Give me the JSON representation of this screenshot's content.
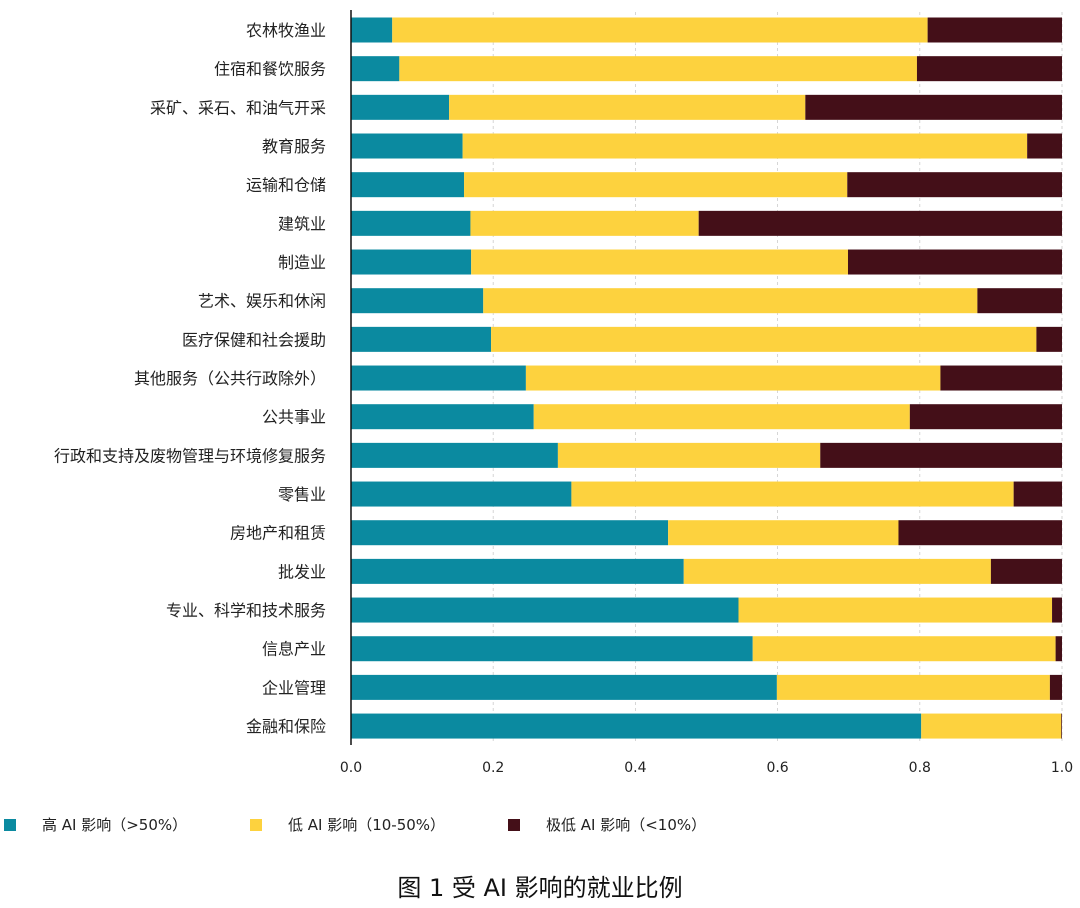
{
  "chart_data": {
    "type": "bar",
    "orientation": "horizontal",
    "stacked": true,
    "title": "图 1 受 AI 影响的就业比例",
    "categories": [
      "农林牧渔业",
      "住宿和餐饮服务",
      "采矿、采石、和油气开采",
      "教育服务",
      "运输和仓储",
      "建筑业",
      "制造业",
      "艺术、娱乐和休闲",
      "医疗保健和社会援助",
      "其他服务（公共行政除外）",
      "公共事业",
      "行政和支持及废物管理与环境修复服务",
      "零售业",
      "房地产和租赁",
      "批发业",
      "专业、科学和技术服务",
      "信息产业",
      "企业管理",
      "金融和保险"
    ],
    "series": [
      {
        "name": "高 AI 影响（>50%）",
        "color": "#0b8aa0",
        "values": [
          0.058,
          0.068,
          0.138,
          0.157,
          0.159,
          0.168,
          0.169,
          0.186,
          0.197,
          0.246,
          0.257,
          0.291,
          0.31,
          0.446,
          0.468,
          0.545,
          0.565,
          0.599,
          0.802
        ]
      },
      {
        "name": "低 AI 影响（10-50%）",
        "color": "#fdd23e",
        "values": [
          0.753,
          0.728,
          0.501,
          0.794,
          0.539,
          0.321,
          0.53,
          0.695,
          0.767,
          0.583,
          0.529,
          0.369,
          0.622,
          0.324,
          0.432,
          0.441,
          0.426,
          0.384,
          0.197
        ]
      },
      {
        "name": "极低 AI 影响（<10%）",
        "color": "#440f18",
        "values": [
          0.189,
          0.204,
          0.361,
          0.049,
          0.302,
          0.511,
          0.301,
          0.119,
          0.036,
          0.171,
          0.214,
          0.34,
          0.068,
          0.23,
          0.1,
          0.014,
          0.009,
          0.017,
          0.001
        ]
      }
    ],
    "xlim": [
      0,
      1.0
    ],
    "xticks": [
      "0.0",
      "0.2",
      "0.4",
      "0.6",
      "0.8",
      "1.0"
    ],
    "xlabel": "",
    "ylabel": "",
    "grid": "vertical dashed",
    "legend": "bottom"
  }
}
